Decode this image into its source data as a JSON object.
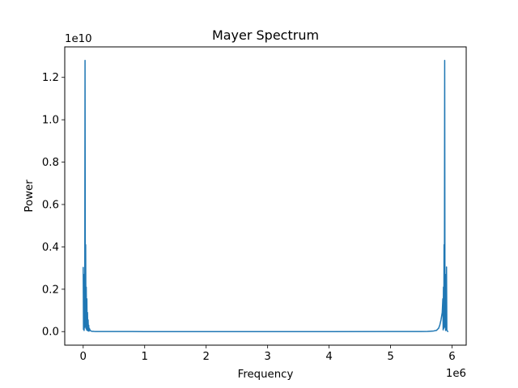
{
  "chart_data": {
    "type": "line",
    "title": "Mayer Spectrum",
    "xlabel": "Frequency",
    "ylabel": "Power",
    "x_offset_label": "1e6",
    "y_offset_label": "1e10",
    "x_scale_factor": 1000000,
    "y_scale_factor": 10000000000,
    "xlim": [
      -300000,
      6230000
    ],
    "ylim": [
      -640000000,
      13440000000
    ],
    "x_ticks": [
      0,
      1000000,
      2000000,
      3000000,
      4000000,
      5000000,
      6000000
    ],
    "x_tick_labels": [
      "0",
      "1",
      "2",
      "3",
      "4",
      "5",
      "6"
    ],
    "y_ticks": [
      0,
      2000000000,
      4000000000,
      6000000000,
      8000000000,
      10000000000,
      12000000000
    ],
    "y_tick_labels": [
      "0.0",
      "0.2",
      "0.4",
      "0.6",
      "0.8",
      "1.0",
      "1.2"
    ],
    "grid": false,
    "legend": "none",
    "series": [
      {
        "color": "#1f77b4",
        "x": [
          0,
          5000,
          10000,
          15000,
          20000,
          25000,
          30000,
          35000,
          40000,
          45000,
          50000,
          55000,
          60000,
          65000,
          70000,
          75000,
          80000,
          85000,
          90000,
          95000,
          100000,
          110000,
          120000,
          130000,
          140000,
          160000,
          180000,
          200000,
          250000,
          300000,
          400000,
          500000,
          800000,
          1000000,
          2000000,
          3000000,
          4000000,
          5000000,
          5500000,
          5600000,
          5700000,
          5750000,
          5760000,
          5780000,
          5800000,
          5820000,
          5840000,
          5850000,
          5855000,
          5860000,
          5865000,
          5870000,
          5875000,
          5880000,
          5885000,
          5890000,
          5895000,
          5900000,
          5905000,
          5910000,
          5915000,
          5920000,
          5925000,
          5930000,
          5935000,
          5940000
        ],
        "y": [
          3050000000,
          100000000,
          2700000000,
          50000000,
          1700000000,
          200000000,
          12800000000,
          300000000,
          4100000000,
          150000000,
          2100000000,
          80000000,
          1550000000,
          60000000,
          900000000,
          40000000,
          550000000,
          30000000,
          300000000,
          20000000,
          150000000,
          80000000,
          40000000,
          25000000,
          15000000,
          12000000,
          8000000,
          6000000,
          5000000,
          4000000,
          3000000,
          2000000,
          4000000,
          1000000,
          1000000,
          1000000,
          1000000,
          2000000,
          5000000,
          10000000,
          30000000,
          60000000,
          100000000,
          150000000,
          300000000,
          550000000,
          900000000,
          1550000000,
          80000000,
          2100000000,
          150000000,
          4100000000,
          300000000,
          12800000000,
          200000000,
          1700000000,
          50000000,
          2700000000,
          100000000,
          3050000000,
          60000000,
          40000000,
          20000000,
          10000000,
          5000000,
          2000000
        ]
      }
    ]
  }
}
